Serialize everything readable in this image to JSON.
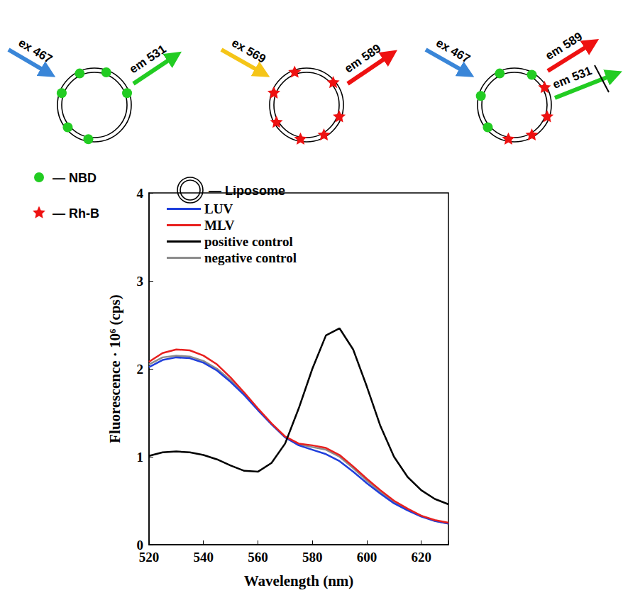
{
  "diagram": {
    "panels": [
      {
        "arrows": [
          {
            "label": "ex 467"
          },
          {
            "label": "em 531"
          }
        ]
      },
      {
        "arrows": [
          {
            "label": "ex 569"
          },
          {
            "label": "em 589"
          }
        ]
      },
      {
        "arrows": [
          {
            "label": "ex 467"
          },
          {
            "label": "em 589"
          },
          {
            "label": "em 531"
          }
        ]
      }
    ],
    "key": [
      {
        "label": "— NBD"
      },
      {
        "label": "— Rh-B"
      },
      {
        "label": "— Liposome"
      }
    ]
  },
  "chart_data": {
    "type": "line",
    "x_label": "Wavelength (nm)",
    "y_label": "Fluorescence · 10⁶ (cps)",
    "x": [
      520,
      525,
      530,
      535,
      540,
      545,
      550,
      555,
      560,
      565,
      570,
      575,
      580,
      585,
      590,
      595,
      600,
      605,
      610,
      615,
      620,
      625,
      630
    ],
    "series": [
      {
        "name": "LUV",
        "color": "#1f3fdc",
        "values": [
          2.02,
          2.1,
          2.13,
          2.12,
          2.07,
          1.98,
          1.85,
          1.7,
          1.53,
          1.37,
          1.22,
          1.13,
          1.08,
          1.03,
          0.95,
          0.83,
          0.7,
          0.58,
          0.47,
          0.39,
          0.32,
          0.27,
          0.24
        ]
      },
      {
        "name": "MLV",
        "color": "#e8201e",
        "values": [
          2.08,
          2.18,
          2.22,
          2.21,
          2.15,
          2.05,
          1.9,
          1.73,
          1.55,
          1.38,
          1.23,
          1.15,
          1.13,
          1.1,
          1.02,
          0.89,
          0.75,
          0.62,
          0.5,
          0.41,
          0.33,
          0.28,
          0.25
        ]
      },
      {
        "name": "positive control",
        "color": "#000000",
        "values": [
          1.01,
          1.05,
          1.06,
          1.05,
          1.02,
          0.97,
          0.9,
          0.84,
          0.83,
          0.93,
          1.15,
          1.55,
          2.0,
          2.38,
          2.46,
          2.22,
          1.8,
          1.35,
          1.0,
          0.77,
          0.62,
          0.52,
          0.46
        ]
      },
      {
        "name": "negative control",
        "color": "#8c8c8c",
        "values": [
          2.05,
          2.13,
          2.15,
          2.14,
          2.09,
          2.0,
          1.87,
          1.71,
          1.54,
          1.37,
          1.22,
          1.14,
          1.11,
          1.08,
          1.0,
          0.87,
          0.73,
          0.6,
          0.48,
          0.4,
          0.33,
          0.27,
          0.24
        ]
      }
    ],
    "xlim": [
      520,
      630
    ],
    "xticks": [
      520,
      540,
      560,
      580,
      600,
      620
    ],
    "ylim": [
      0,
      4
    ],
    "yticks": [
      0,
      1,
      2,
      3,
      4
    ],
    "grid": false,
    "legend": "upper left"
  }
}
